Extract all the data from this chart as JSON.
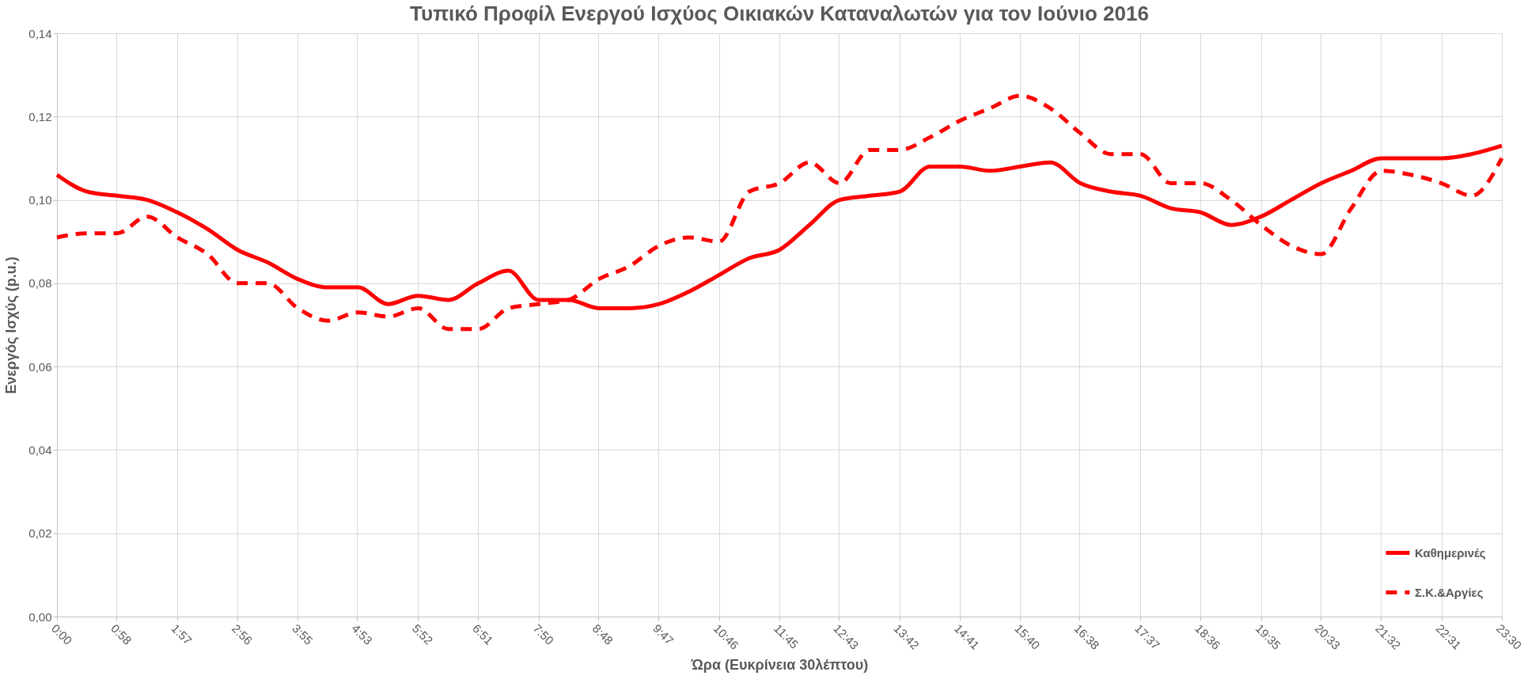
{
  "chart_data": {
    "type": "line",
    "title": "Τυπικό Προφίλ Ενεργού Ισχύος Οικιακών Καταναλωτών για τον Ιούνιο 2016",
    "xlabel": "Ώρα (Ευκρίνεια 30λέπτου)",
    "ylabel": "Ενεργός Ισχύς (p.u.)",
    "x": [
      0,
      0.49,
      0.979,
      1.469,
      1.958,
      2.448,
      2.938,
      3.427,
      3.917,
      4.406,
      4.896,
      5.385,
      5.875,
      6.365,
      6.854,
      7.344,
      7.833,
      8.323,
      8.813,
      9.302,
      9.792,
      10.281,
      10.771,
      11.26,
      11.75,
      12.24,
      12.729,
      13.219,
      13.708,
      14.198,
      14.688,
      15.177,
      15.667,
      16.156,
      16.646,
      17.135,
      17.625,
      18.115,
      18.604,
      19.094,
      19.583,
      20.073,
      20.563,
      21.052,
      21.542,
      22.031,
      22.521,
      23.01,
      23.5
    ],
    "series": [
      {
        "name": "Καθημερινές",
        "color": "#ff0000",
        "line_style": "solid",
        "values": [
          0.106,
          0.102,
          0.101,
          0.1,
          0.097,
          0.093,
          0.088,
          0.085,
          0.081,
          0.079,
          0.079,
          0.075,
          0.077,
          0.076,
          0.08,
          0.083,
          0.076,
          0.076,
          0.074,
          0.074,
          0.075,
          0.078,
          0.082,
          0.086,
          0.088,
          0.094,
          0.1,
          0.101,
          0.102,
          0.108,
          0.108,
          0.107,
          0.108,
          0.109,
          0.104,
          0.102,
          0.101,
          0.098,
          0.097,
          0.094,
          0.096,
          0.1,
          0.104,
          0.107,
          0.11,
          0.11,
          0.11,
          0.111,
          0.113
        ]
      },
      {
        "name": "Σ.Κ.&Αργίες",
        "color": "#ff0000",
        "line_style": "dashed",
        "values": [
          0.091,
          0.092,
          0.092,
          0.096,
          0.091,
          0.087,
          0.08,
          0.08,
          0.074,
          0.071,
          0.073,
          0.072,
          0.074,
          0.069,
          0.069,
          0.074,
          0.075,
          0.076,
          0.081,
          0.084,
          0.089,
          0.091,
          0.09,
          0.102,
          0.104,
          0.109,
          0.104,
          0.112,
          0.112,
          0.115,
          0.119,
          0.122,
          0.125,
          0.122,
          0.116,
          0.111,
          0.111,
          0.104,
          0.104,
          0.1,
          0.094,
          0.089,
          0.087,
          0.098,
          0.107,
          0.106,
          0.104,
          0.101,
          0.11
        ]
      }
    ],
    "xlim": [
      0,
      23.5
    ],
    "xticks": [
      {
        "value": 0,
        "label": "0:00"
      },
      {
        "value": 0.967,
        "label": "0:58"
      },
      {
        "value": 1.95,
        "label": "1:57"
      },
      {
        "value": 2.933,
        "label": "2:56"
      },
      {
        "value": 3.917,
        "label": "3:55"
      },
      {
        "value": 4.883,
        "label": "4:53"
      },
      {
        "value": 5.867,
        "label": "5:52"
      },
      {
        "value": 6.85,
        "label": "6:51"
      },
      {
        "value": 7.833,
        "label": "7:50"
      },
      {
        "value": 8.8,
        "label": "8:48"
      },
      {
        "value": 9.783,
        "label": "9:47"
      },
      {
        "value": 10.767,
        "label": "10:46"
      },
      {
        "value": 11.75,
        "label": "11:45"
      },
      {
        "value": 12.717,
        "label": "12:43"
      },
      {
        "value": 13.7,
        "label": "13:42"
      },
      {
        "value": 14.683,
        "label": "14:41"
      },
      {
        "value": 15.667,
        "label": "15:40"
      },
      {
        "value": 16.633,
        "label": "16:38"
      },
      {
        "value": 17.617,
        "label": "17:37"
      },
      {
        "value": 18.6,
        "label": "18:36"
      },
      {
        "value": 19.583,
        "label": "19:35"
      },
      {
        "value": 20.55,
        "label": "20:33"
      },
      {
        "value": 21.533,
        "label": "21:32"
      },
      {
        "value": 22.517,
        "label": "22:31"
      },
      {
        "value": 23.5,
        "label": "23:30"
      }
    ],
    "ylim": [
      0,
      0.14
    ],
    "yticks": [
      {
        "value": 0,
        "label": "0,00"
      },
      {
        "value": 0.02,
        "label": "0,02"
      },
      {
        "value": 0.04,
        "label": "0,04"
      },
      {
        "value": 0.06,
        "label": "0,06"
      },
      {
        "value": 0.08,
        "label": "0,08"
      },
      {
        "value": 0.1,
        "label": "0,10"
      },
      {
        "value": 0.12,
        "label": "0,12"
      },
      {
        "value": 0.14,
        "label": "0,14"
      }
    ],
    "grid": true,
    "legend": "bottom right",
    "marker": "none"
  }
}
